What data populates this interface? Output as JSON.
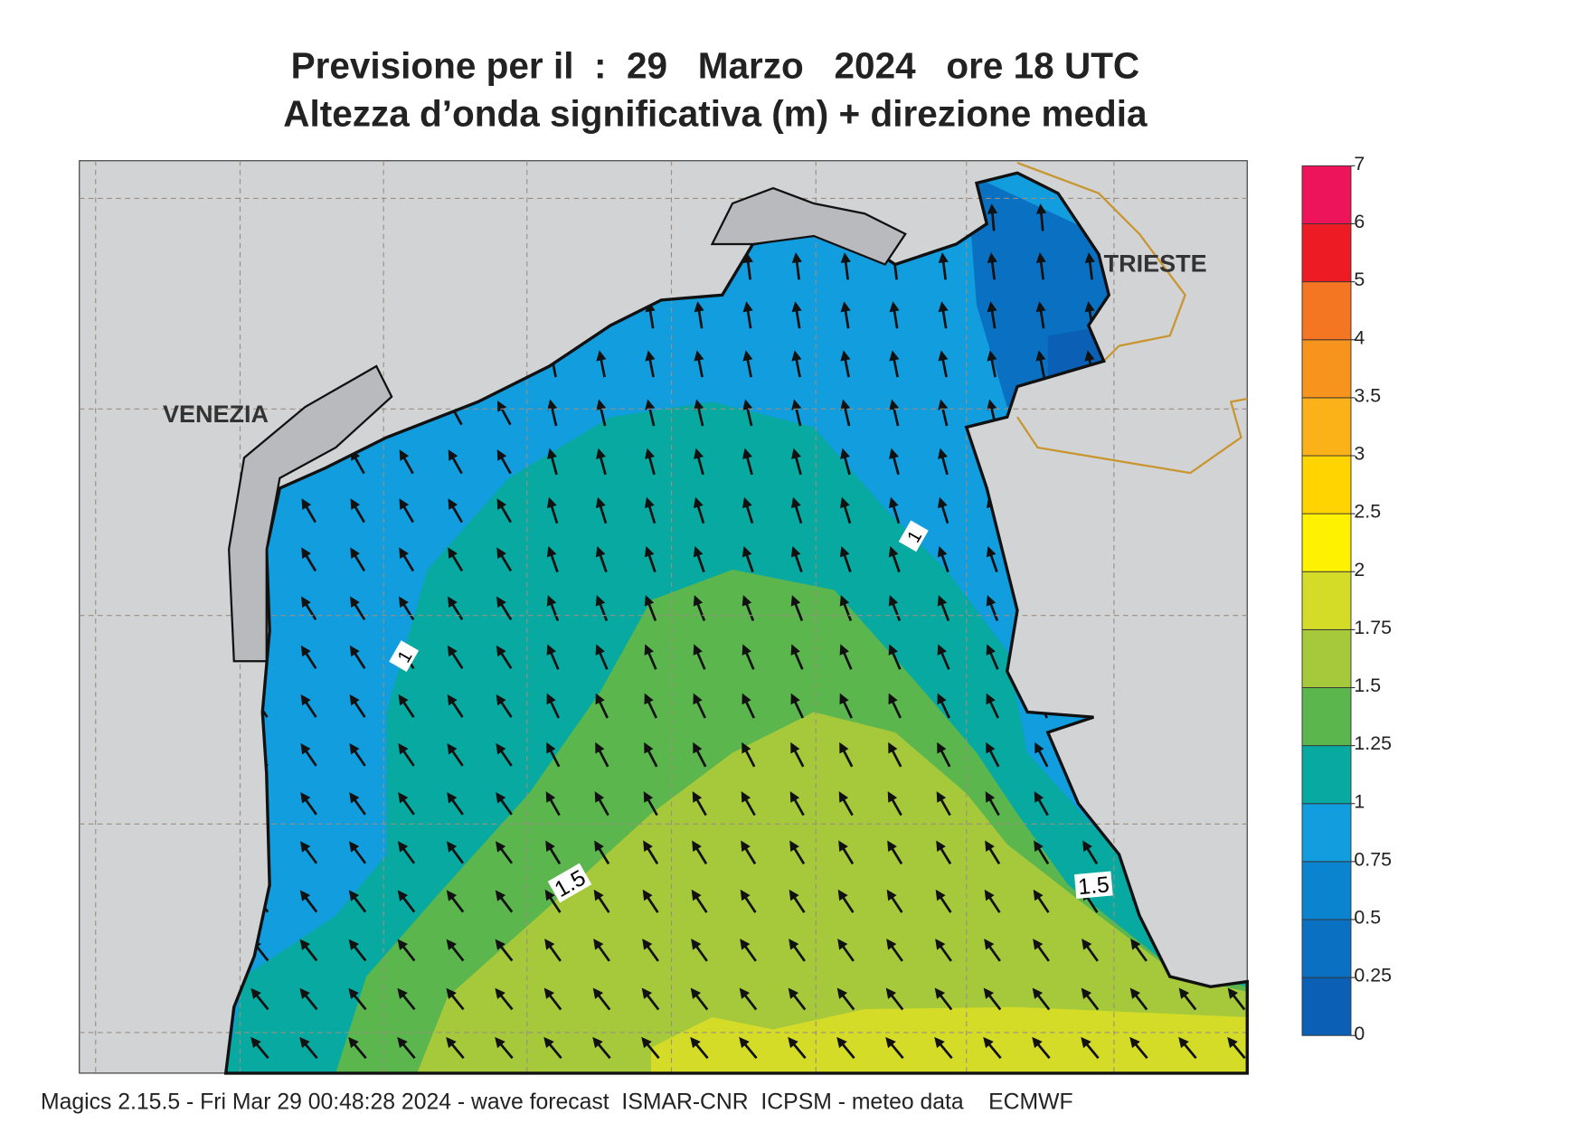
{
  "header": {
    "title": "Previsione per il  :  29   Marzo   2024   ore 18 UTC",
    "subtitle": "Altezza d’onda significativa (m) + direzione media"
  },
  "map": {
    "cities": [
      "VENEZIA",
      "TRIESTE"
    ],
    "contour_labels": [
      "1",
      "1",
      "1.5",
      "1.5"
    ]
  },
  "legend": {
    "levels": [
      0,
      0.25,
      0.5,
      0.75,
      1,
      1.25,
      1.5,
      1.75,
      2,
      2.5,
      3,
      3.5,
      4,
      5,
      6,
      7
    ],
    "colors": [
      "#0b5fb5",
      "#0a70c2",
      "#0b84d0",
      "#129ddf",
      "#07a9a0",
      "#5cb64e",
      "#a6c93b",
      "#d4dc28",
      "#fff200",
      "#ffd400",
      "#fbb118",
      "#f7941d",
      "#f47522",
      "#ed1c24",
      "#ed145b"
    ]
  },
  "footer": "Magics 2.15.5 - Fri Mar 29 00:48:28 2024 - wave forecast  ISMAR-CNR  ICPSM - meteo data    ECMWF"
}
